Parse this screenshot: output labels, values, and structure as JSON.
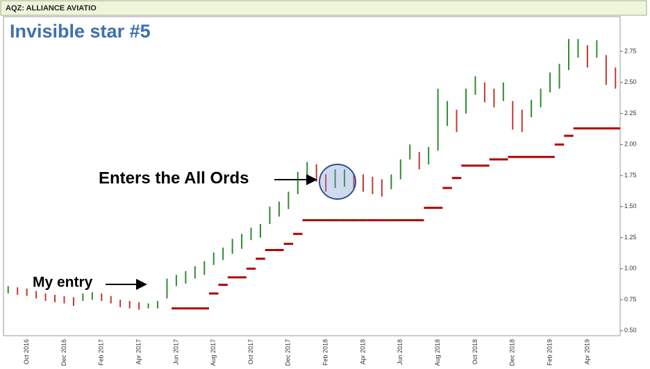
{
  "symbol": "AQZ: ALLIANCE AVIATIO",
  "chart_data": {
    "type": "hilo",
    "title": "Invisible star #5",
    "annotations": [
      "My entry",
      "Enters the All Ords"
    ],
    "categories": [
      null,
      null,
      "Oct 2016",
      null,
      null,
      null,
      "Dec 2016",
      null,
      null,
      null,
      "Feb 2017",
      null,
      null,
      null,
      "Apr 2017",
      null,
      null,
      null,
      "Jun 2017",
      null,
      null,
      null,
      "Aug 2017",
      null,
      null,
      null,
      "Oct 2017",
      null,
      null,
      null,
      "Dec 2017",
      null,
      null,
      null,
      "Feb 2018",
      null,
      null,
      null,
      "Apr 2018",
      null,
      null,
      null,
      "Jun 2018",
      null,
      null,
      null,
      "Aug 2018",
      null,
      null,
      null,
      "Oct 2018",
      null,
      null,
      null,
      "Dec 2018",
      null,
      null,
      null,
      "Feb 2019",
      null,
      null,
      null,
      "Apr 2019",
      null,
      null,
      null
    ],
    "high": [
      0.86,
      0.85,
      0.84,
      0.82,
      0.8,
      0.79,
      0.78,
      0.77,
      0.8,
      0.81,
      0.8,
      0.78,
      0.75,
      0.74,
      0.73,
      0.72,
      0.74,
      0.92,
      0.95,
      0.98,
      1.02,
      1.06,
      1.13,
      1.17,
      1.24,
      1.28,
      1.33,
      1.36,
      1.5,
      1.54,
      1.62,
      1.78,
      1.86,
      1.84,
      1.76,
      1.8,
      1.8,
      1.76,
      1.76,
      1.74,
      1.72,
      1.76,
      1.88,
      2.0,
      1.94,
      1.98,
      2.45,
      2.35,
      2.28,
      2.45,
      2.55,
      2.5,
      2.45,
      2.5,
      2.35,
      2.28,
      2.36,
      2.45,
      2.58,
      2.65,
      2.85,
      2.85,
      2.8,
      2.84,
      2.72,
      2.62
    ],
    "low": [
      0.8,
      0.79,
      0.78,
      0.76,
      0.74,
      0.73,
      0.72,
      0.7,
      0.74,
      0.75,
      0.74,
      0.72,
      0.69,
      0.68,
      0.67,
      0.68,
      0.68,
      0.76,
      0.86,
      0.88,
      0.92,
      0.95,
      1.03,
      1.07,
      1.12,
      1.16,
      1.23,
      1.25,
      1.36,
      1.42,
      1.48,
      1.6,
      1.72,
      1.7,
      1.62,
      1.65,
      1.66,
      1.64,
      1.62,
      1.6,
      1.58,
      1.64,
      1.72,
      1.88,
      1.8,
      1.84,
      1.95,
      2.15,
      2.1,
      2.25,
      2.4,
      2.34,
      2.3,
      2.35,
      2.12,
      2.1,
      2.22,
      2.3,
      2.42,
      2.45,
      2.6,
      2.7,
      2.62,
      2.7,
      2.48,
      2.45
    ],
    "stop": [
      null,
      null,
      null,
      null,
      null,
      null,
      null,
      null,
      null,
      null,
      null,
      null,
      null,
      null,
      null,
      null,
      null,
      null,
      0.68,
      0.68,
      0.68,
      0.68,
      0.8,
      0.87,
      0.93,
      0.93,
      1.0,
      1.08,
      1.15,
      1.15,
      1.2,
      1.28,
      1.39,
      1.39,
      1.39,
      1.39,
      1.39,
      1.39,
      1.39,
      1.39,
      1.39,
      1.39,
      1.39,
      1.39,
      1.39,
      1.49,
      1.49,
      1.65,
      1.73,
      1.83,
      1.83,
      1.83,
      1.88,
      1.88,
      1.9,
      1.9,
      1.9,
      1.9,
      1.9,
      2.0,
      2.07,
      2.13,
      2.13,
      2.13,
      2.13,
      2.13
    ],
    "up_color": "#2e8b2e",
    "down_color": "#c0392b",
    "stop_color": "#b00000",
    "ylim": [
      0.46,
      3.03
    ],
    "yticks": [
      {
        "value": 0.5,
        "label": "0.50"
      },
      {
        "value": 0.75,
        "label": "0.75"
      },
      {
        "value": 1,
        "label": "1.00"
      },
      {
        "value": 1.25,
        "label": "1.25"
      },
      {
        "value": 1.5,
        "label": "1.50"
      },
      {
        "value": 1.75,
        "label": "1.75"
      },
      {
        "value": 2,
        "label": "2.00"
      },
      {
        "value": 2.25,
        "label": "2.25"
      },
      {
        "value": 2.5,
        "label": "2.50"
      },
      {
        "value": 2.75,
        "label": "2.75"
      }
    ]
  }
}
